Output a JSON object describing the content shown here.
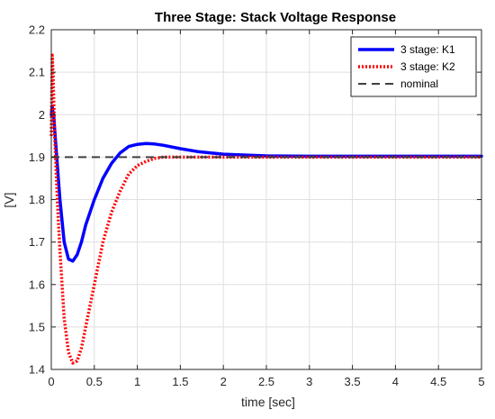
{
  "chart_data": {
    "type": "line",
    "title": "Three Stage: Stack Voltage Response",
    "xlabel": "time [sec]",
    "ylabel": "[V]",
    "xlim": [
      0,
      5
    ],
    "ylim": [
      1.4,
      2.2
    ],
    "xticks": [
      "0",
      "0.5",
      "1",
      "1.5",
      "2",
      "2.5",
      "3",
      "3.5",
      "4",
      "4.5",
      "5"
    ],
    "yticks": [
      "1.4",
      "1.5",
      "1.6",
      "1.7",
      "1.8",
      "1.9",
      "2",
      "2.1",
      "2.2"
    ],
    "grid": true,
    "legend_position": "top-right",
    "series": [
      {
        "name": "3 stage: K1",
        "color": "#0000ff",
        "style": "solid",
        "x": [
          0,
          0.01,
          0.03,
          0.06,
          0.1,
          0.15,
          0.2,
          0.25,
          0.3,
          0.35,
          0.4,
          0.5,
          0.6,
          0.7,
          0.8,
          0.9,
          1.0,
          1.1,
          1.2,
          1.3,
          1.5,
          1.7,
          2.0,
          2.5,
          3.0,
          3.5,
          4.0,
          4.5,
          5.0
        ],
        "y": [
          2.0,
          2.02,
          1.99,
          1.91,
          1.8,
          1.7,
          1.66,
          1.655,
          1.67,
          1.7,
          1.74,
          1.8,
          1.85,
          1.885,
          1.91,
          1.925,
          1.93,
          1.932,
          1.931,
          1.928,
          1.92,
          1.913,
          1.907,
          1.903,
          1.902,
          1.902,
          1.902,
          1.902,
          1.902
        ]
      },
      {
        "name": "3 stage: K2",
        "color": "#ff0000",
        "style": "dotted",
        "x": [
          0,
          0.01,
          0.02,
          0.04,
          0.07,
          0.1,
          0.15,
          0.2,
          0.25,
          0.3,
          0.35,
          0.4,
          0.5,
          0.6,
          0.7,
          0.8,
          0.9,
          1.0,
          1.1,
          1.2,
          1.3,
          1.4,
          1.5,
          1.7,
          2.0,
          2.5,
          3.0,
          4.0,
          5.0
        ],
        "y": [
          1.95,
          2.14,
          2.1,
          1.95,
          1.8,
          1.68,
          1.52,
          1.44,
          1.415,
          1.42,
          1.45,
          1.5,
          1.6,
          1.7,
          1.77,
          1.82,
          1.86,
          1.88,
          1.89,
          1.897,
          1.9,
          1.9,
          1.9,
          1.9,
          1.9,
          1.9,
          1.9,
          1.9,
          1.9
        ]
      },
      {
        "name": "nominal",
        "color": "#404040",
        "style": "dashed",
        "x": [
          0,
          5
        ],
        "y": [
          1.9,
          1.9
        ]
      }
    ]
  }
}
